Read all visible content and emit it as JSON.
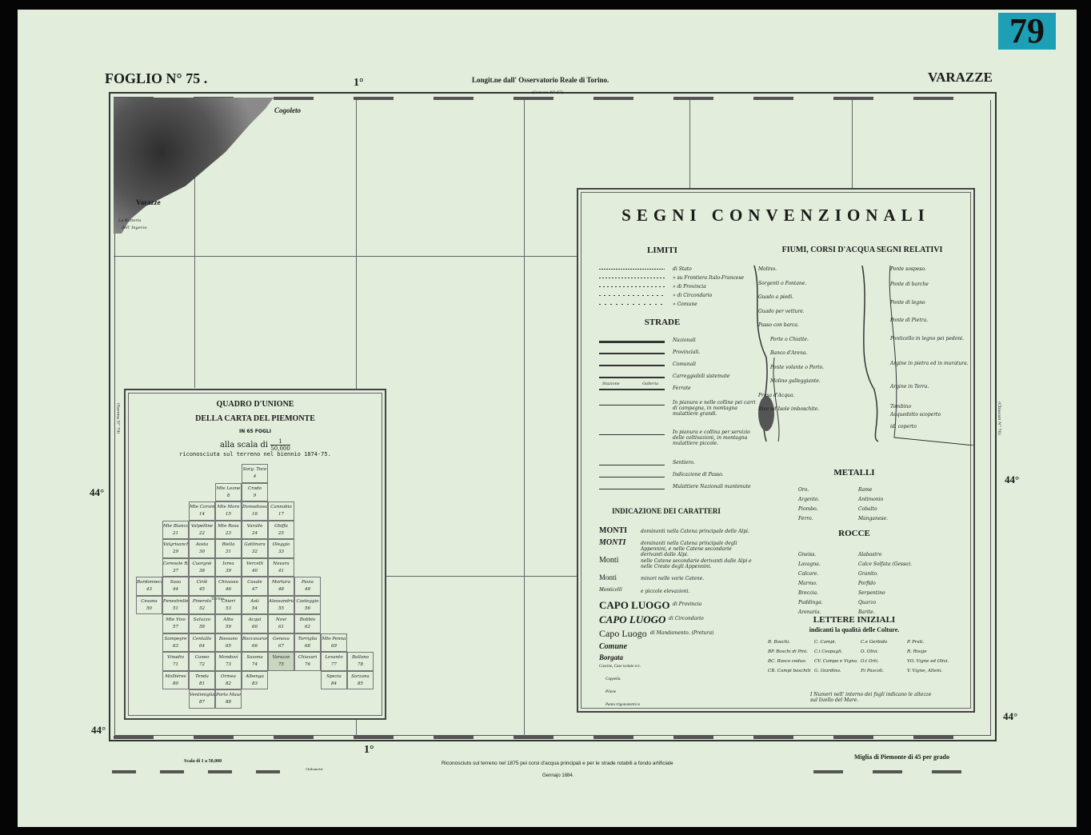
{
  "sheet": {
    "title": "FOGLIO N° 75 .",
    "name": "VARAZZE",
    "number_badge": "79",
    "badge_color": "#1d9fb5",
    "paper_color": "#e2eddb",
    "longitude_note": "Longit.ne dall' Osservatorio Reale di Torino.",
    "top_degree": "1°",
    "bottom_degree": "1°",
    "lat_left": "44°",
    "lat_right": "44°",
    "lat_left_bottom": "44°",
    "lat_right_bottom": "44°",
    "adjacent_top": "(Genova N° 67)",
    "adjacent_left": "(Savona N° 74)",
    "adjacent_right": "(Chiavari N° 76)"
  },
  "map_labels": {
    "town1": "Cogoleto",
    "town2": "Varazze",
    "place1": "La Batteria",
    "place2": "dell' Ingerso"
  },
  "legend": {
    "title": "SEGNI CONVENZIONALI",
    "limiti": {
      "heading": "LIMITI",
      "items": [
        "di Stato",
        "» su Frontiera Italo-Francese",
        "» di Provincia",
        "» di Circondario",
        "» Comune"
      ]
    },
    "strade": {
      "heading": "STRADE",
      "items": [
        "Nazionali",
        "Provinciali.",
        "Comunali",
        "Carreggiabili sistemate",
        "Ferrate"
      ],
      "ferrate_labels": [
        "Stazione",
        "Galleria"
      ],
      "extra": [
        "In pianura e nelle colline pei carri di campagna, in montagna mulattiere grandi.",
        "In pianura e collina per servizio delle coltivazioni, in montagna mulattiere piccole.",
        "Sentiero.",
        "Indicazione di Passo.",
        "Mulattiere Nazionali mantenute"
      ]
    },
    "fiumi": {
      "heading": "FIUMI, CORSI D'ACQUA SEGNI RELATIVI",
      "left": [
        "Molino.",
        "Sorgenti o Fontane.",
        "Guado a piedi.",
        "Guado per vetture.",
        "Passo con barca.",
        "Porte o Chiatte.",
        "Banco d'Arena.",
        "Ponte volante o Porto.",
        "Molino galleggiante.",
        "Presa d'Acqua.",
        "Rive ed Isole imboschite."
      ],
      "right": [
        "Ponte sospeso.",
        "Ponte di barche",
        "Ponte di legno",
        "Ponte di Pietra.",
        "Ponticello in legno pei pedoni.",
        "Argine in pietra ed in muratura.",
        "Argine in Terra.",
        "Tombino",
        "Acquedotto scoperto",
        "id. coperto"
      ]
    },
    "metalli": {
      "heading": "METALLI",
      "items": [
        "Oro.",
        "Argento.",
        "Piombo.",
        "Ferro.",
        "Rame",
        "Antimonio",
        "Cobalto",
        "Manganese."
      ]
    },
    "rocce": {
      "heading": "ROCCE",
      "items": [
        "Gneiss.",
        "Lavagna.",
        "Calcare.",
        "Marmo.",
        "Breccia.",
        "Puddinga.",
        "Arenaria.",
        "Alabastro",
        "Calce Solfata (Gesso).",
        "Granito.",
        "Porfido",
        "Serpentino",
        "Quarzo",
        "Barite."
      ]
    },
    "caratteri": {
      "heading": "INDICAZIONE DEI CARATTERI",
      "items": [
        {
          "sample": "MONTI",
          "desc": "dominanti nella Catena principale delle Alpi."
        },
        {
          "sample": "MONTI",
          "desc": "dominanti nella Catena principale degli Appennini, e nelle Catene secondarie derivanti dalle Alpi."
        },
        {
          "sample": "Monti",
          "desc": "nelle Catene secondarie derivanti dalle Alpi e nelle Creste degli Appennini."
        },
        {
          "sample": "Monti",
          "desc": "minori nelle varie Catene."
        },
        {
          "sample": "Monticelli",
          "desc": "e piccole elevazioni."
        },
        {
          "sample": "CAPO LUOGO",
          "desc": "di Provincia"
        },
        {
          "sample": "CAPO LUOGO",
          "desc": "di Circondario"
        },
        {
          "sample": "Capo Luogo",
          "desc": "di Mandamento. (Pretura)"
        },
        {
          "sample": "Comune",
          "desc": ""
        },
        {
          "sample": "Borgata",
          "desc": ""
        },
        {
          "sample": "Cascine, Case isolate ecc.",
          "desc": ""
        },
        {
          "sample": "Cappella.",
          "desc": ""
        },
        {
          "sample": "Pilone",
          "desc": ""
        },
        {
          "sample": "Punto trigonometrico",
          "desc": ""
        }
      ]
    },
    "lettere": {
      "heading": "LETTERE INIZIALI",
      "subheading": "indicanti la qualità delle Colture.",
      "items": [
        "B. Boschi.",
        "C. Campi.",
        "C.e Gerbido",
        "P. Prati.",
        "BP. Boschi di Pini.",
        "C.i Cespugli.",
        "O. Olivi.",
        "R. Risaje",
        "BC. Bosco ceduo.",
        "CV. Campo e Vigna.",
        "O.t Orti.",
        "VO. Vigne ed Olivi.",
        "CB. Campi boschiti",
        "G. Giardino.",
        "P.i Pascoli.",
        "V. Vigne, Alteni."
      ],
      "note": "I Numeri nell' interno dei fogli indicano le altezze sul livello del Mare."
    }
  },
  "index_map": {
    "title1": "QUADRO D'UNIONE",
    "title2": "DELLA CARTA DEL PIEMONTE",
    "title3": "IN 65 FOGLI",
    "scale_text": "alla scala di",
    "scale_num": "1",
    "scale_den": "50,000",
    "subtitle": "riconosciuta sul terreno nel biennio 1874-75.",
    "capital_label": "Torino",
    "cells": [
      [
        "Sorg. Toce",
        "4"
      ],
      [
        "Mte Leone",
        "8"
      ],
      [
        "Crodo",
        "9"
      ],
      [
        "Mte Corvino",
        "14"
      ],
      [
        "Mte Moro",
        "15"
      ],
      [
        "Domodossola",
        "16"
      ],
      [
        "Cannobio",
        "17"
      ],
      [
        "Mte Bianco",
        "21"
      ],
      [
        "Valpelline",
        "22"
      ],
      [
        "Mte Rosa",
        "23"
      ],
      [
        "Varallo",
        "24"
      ],
      [
        "Ghiffa",
        "25"
      ],
      [
        "Valgrisanche",
        "29"
      ],
      [
        "Aosta",
        "30"
      ],
      [
        "Biella",
        "31"
      ],
      [
        "Gattinara",
        "32"
      ],
      [
        "Oleggio",
        "33"
      ],
      [
        "Ceresole Rle",
        "37"
      ],
      [
        "Cuorgnè",
        "38"
      ],
      [
        "Ivrea",
        "39"
      ],
      [
        "Vercelli",
        "40"
      ],
      [
        "Novara",
        "41"
      ],
      [
        "Bardonnecchia",
        "43"
      ],
      [
        "Susa",
        "44"
      ],
      [
        "Ciriè",
        "45"
      ],
      [
        "Chivasso",
        "46"
      ],
      [
        "Casale",
        "47"
      ],
      [
        "Mortara",
        "48"
      ],
      [
        "Pavia",
        "49"
      ],
      [
        "Cesana",
        "50"
      ],
      [
        "Fenestrelle",
        "51"
      ],
      [
        "Pinerolo",
        "52"
      ],
      [
        "Chieri",
        "53"
      ],
      [
        "Asti",
        "54"
      ],
      [
        "Alessandria",
        "55"
      ],
      [
        "Casteggio",
        "56"
      ],
      [
        "Mte Viso",
        "57"
      ],
      [
        "Saluzzo",
        "58"
      ],
      [
        "Alba",
        "59"
      ],
      [
        "Acqui",
        "60"
      ],
      [
        "Novi",
        "61"
      ],
      [
        "Bobbio",
        "62"
      ],
      [
        "Sampeyre",
        "63"
      ],
      [
        "Centallo",
        "64"
      ],
      [
        "Bossano",
        "65"
      ],
      [
        "Roccavarano",
        "66"
      ],
      [
        "Genova",
        "67"
      ],
      [
        "Torriglia",
        "68"
      ],
      [
        "Mte Penna",
        "69"
      ],
      [
        "Vinadio",
        "71"
      ],
      [
        "Cuneo",
        "72"
      ],
      [
        "Mondovì",
        "73"
      ],
      [
        "Savona",
        "74"
      ],
      [
        "Varazze",
        "75"
      ],
      [
        "Chiavari",
        "76"
      ],
      [
        "Levanto",
        "77"
      ],
      [
        "Ballano",
        "78"
      ],
      [
        "Molliéres",
        "80"
      ],
      [
        "Tenda",
        "81"
      ],
      [
        "Ormea",
        "82"
      ],
      [
        "Albenga",
        "83"
      ],
      [
        "Spezia",
        "84"
      ],
      [
        "Sarzana",
        "85"
      ],
      [
        "Ventimiglia",
        "87"
      ],
      [
        "Porto Maurizio",
        "88"
      ]
    ]
  },
  "footer": {
    "scale_left": "Scala di 1 a 50,000",
    "km_label": "Chilometri",
    "scale_right": "Miglia di Piemonte di 45 per grado",
    "note": "Riconosciuto sul terreno nel 1875 pei corsi d'acqua principali e per le strade rotabili a fondo artificiale",
    "date": "Gennajo 1884."
  }
}
